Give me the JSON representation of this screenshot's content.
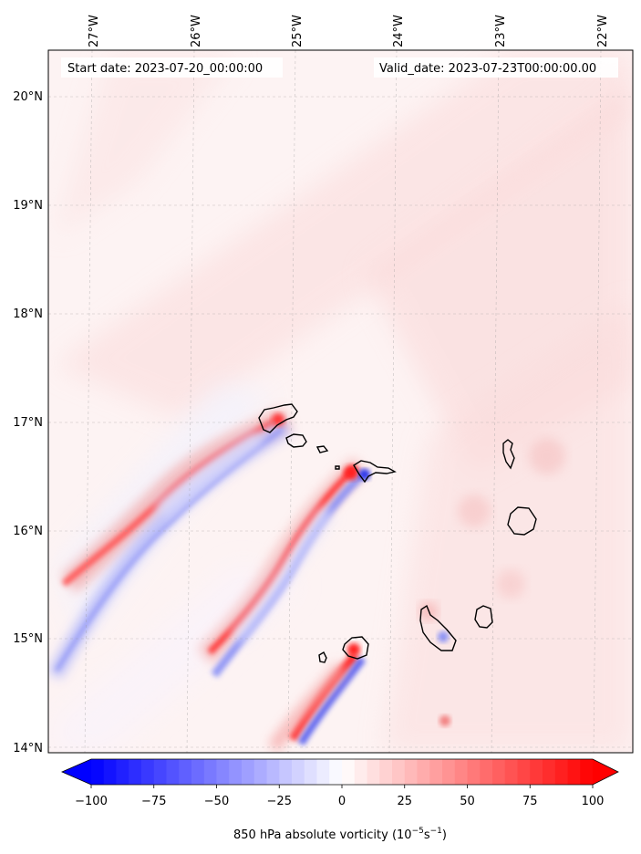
{
  "map": {
    "lon_labels": [
      "27°W",
      "26°W",
      "25°W",
      "24°W",
      "23°W",
      "22°W"
    ],
    "lat_labels": [
      "20°N",
      "19°N",
      "18°N",
      "17°N",
      "16°N",
      "15°N",
      "14°N"
    ],
    "start_label": "Start date: 2023-07-20_00:00:00",
    "valid_label": "Valid_date: 2023-07-23T00:00:00.00",
    "extent": {
      "lon_min": -27.4,
      "lon_max": -21.8,
      "lat_min": 13.95,
      "lat_max": 20.4
    }
  },
  "colorbar": {
    "ticks": [
      "−100",
      "−75",
      "−50",
      "−25",
      "0",
      "25",
      "50",
      "75",
      "100"
    ],
    "label_main": "850 hPa absolute vorticity (10",
    "label_exp1": "−5",
    "label_mid": "s",
    "label_exp2": "−1",
    "label_end": ")",
    "min_color": "#0000ff",
    "mid_color": "#ffffff",
    "max_color": "#ff0000"
  }
}
